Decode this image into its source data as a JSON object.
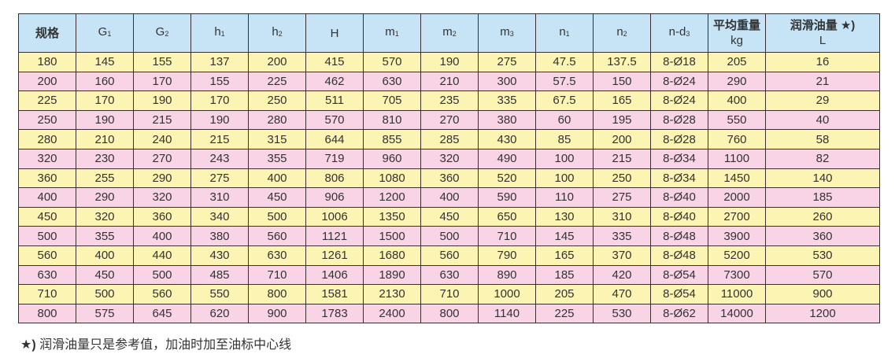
{
  "headers": [
    {
      "main": "规格",
      "sub": ""
    },
    {
      "main": "G",
      "sub": "1"
    },
    {
      "main": "G",
      "sub": "2"
    },
    {
      "main": "h",
      "sub": "1"
    },
    {
      "main": "h",
      "sub": "2"
    },
    {
      "main": "H",
      "sub": ""
    },
    {
      "main": "m",
      "sub": "1"
    },
    {
      "main": "m",
      "sub": "2"
    },
    {
      "main": "m",
      "sub": "3"
    },
    {
      "main": "n",
      "sub": "1"
    },
    {
      "main": "n",
      "sub": "2"
    },
    {
      "main": "n-d",
      "sub": "3"
    },
    {
      "main": "平均重量",
      "unit": "kg"
    },
    {
      "main": "润滑油量 ★)",
      "unit": "L"
    }
  ],
  "rows": [
    [
      "180",
      "145",
      "155",
      "137",
      "200",
      "415",
      "570",
      "190",
      "275",
      "47.5",
      "137.5",
      "8-Ø18",
      "205",
      "16"
    ],
    [
      "200",
      "160",
      "170",
      "155",
      "225",
      "462",
      "630",
      "210",
      "300",
      "57.5",
      "150",
      "8-Ø24",
      "290",
      "21"
    ],
    [
      "225",
      "170",
      "190",
      "170",
      "250",
      "511",
      "705",
      "235",
      "335",
      "67.5",
      "165",
      "8-Ø24",
      "400",
      "29"
    ],
    [
      "250",
      "190",
      "215",
      "190",
      "280",
      "570",
      "810",
      "270",
      "380",
      "60",
      "195",
      "8-Ø28",
      "550",
      "40"
    ],
    [
      "280",
      "210",
      "240",
      "215",
      "315",
      "644",
      "855",
      "285",
      "430",
      "85",
      "200",
      "8-Ø28",
      "760",
      "58"
    ],
    [
      "320",
      "230",
      "270",
      "243",
      "355",
      "719",
      "960",
      "320",
      "490",
      "100",
      "215",
      "8-Ø34",
      "1100",
      "82"
    ],
    [
      "360",
      "255",
      "290",
      "275",
      "400",
      "806",
      "1080",
      "360",
      "520",
      "100",
      "250",
      "8-Ø34",
      "1450",
      "140"
    ],
    [
      "400",
      "290",
      "320",
      "310",
      "450",
      "906",
      "1200",
      "400",
      "590",
      "110",
      "275",
      "8-Ø40",
      "2000",
      "185"
    ],
    [
      "450",
      "320",
      "360",
      "340",
      "500",
      "1006",
      "1350",
      "450",
      "650",
      "130",
      "310",
      "8-Ø40",
      "2700",
      "260"
    ],
    [
      "500",
      "355",
      "400",
      "380",
      "560",
      "1121",
      "1500",
      "500",
      "710",
      "145",
      "335",
      "8-Ø48",
      "3900",
      "360"
    ],
    [
      "560",
      "400",
      "440",
      "430",
      "630",
      "1261",
      "1680",
      "560",
      "790",
      "165",
      "370",
      "8-Ø48",
      "5200",
      "530"
    ],
    [
      "630",
      "450",
      "500",
      "485",
      "710",
      "1406",
      "1890",
      "630",
      "890",
      "185",
      "420",
      "8-Ø54",
      "7300",
      "570"
    ],
    [
      "710",
      "500",
      "560",
      "550",
      "800",
      "1581",
      "2130",
      "710",
      "1000",
      "205",
      "470",
      "8-Ø54",
      "11000",
      "900"
    ],
    [
      "800",
      "575",
      "645",
      "620",
      "900",
      "1783",
      "2400",
      "800",
      "1140",
      "225",
      "530",
      "8-Ø62",
      "14000",
      "1200"
    ]
  ],
  "footnote": {
    "star": "★)",
    "text": " 润滑油量只是参考值，加油时加至油标中心线"
  },
  "colors": {
    "header": "#c6e4f6",
    "row_odd": "#fcf4b2",
    "row_even": "#f8d4e6",
    "border": "#3a2e2e"
  }
}
